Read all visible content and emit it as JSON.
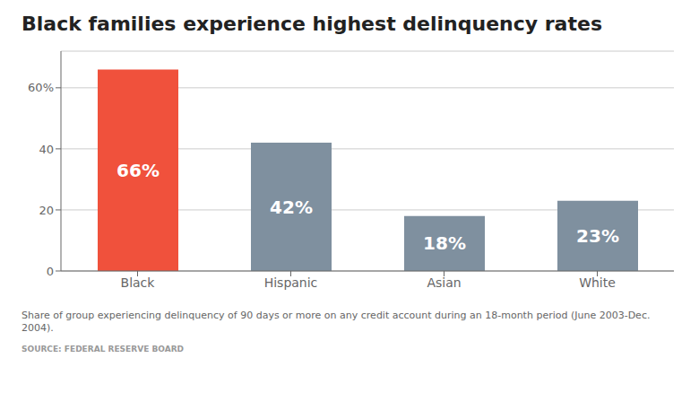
{
  "chart_data": {
    "type": "bar",
    "title": "Black families experience highest delinquency rates",
    "categories": [
      "Black",
      "Hispanic",
      "Asian",
      "White"
    ],
    "values": [
      66,
      42,
      18,
      23
    ],
    "value_labels": [
      "66%",
      "42%",
      "18%",
      "23%"
    ],
    "colors": [
      "#f0513c",
      "#7f909f",
      "#7f909f",
      "#7f909f"
    ],
    "ylim": [
      0,
      72
    ],
    "yticks": [
      0,
      20,
      40,
      {
        "value": 60,
        "label": "60%"
      }
    ],
    "grid": true,
    "data_labels": true,
    "annotations": [
      "Share of group experiencing delinquency of 90 days or more on any credit account during an 18-month period (June 2003-Dec. 2004).",
      "SOURCE: FEDERAL RESERVE BOARD"
    ]
  }
}
